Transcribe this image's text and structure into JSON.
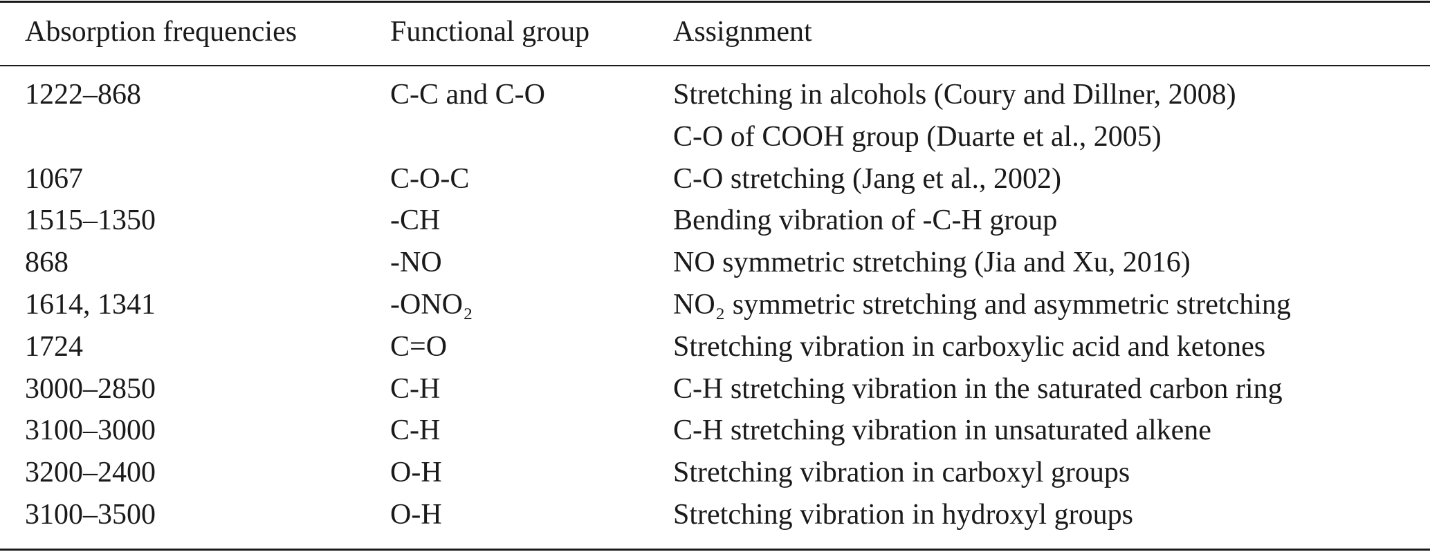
{
  "table": {
    "header": [
      "Absorption frequencies",
      "Functional group",
      "Assignment"
    ],
    "rows": [
      {
        "frequency": "1222–868",
        "group": "C-C and C-O",
        "assignment": [
          "Stretching in alcohols (Coury and Dillner, 2008)",
          "C-O of COOH group (Duarte et al., 2005)"
        ]
      },
      {
        "frequency": "1067",
        "group": "C-O-C",
        "assignment": [
          "C-O stretching (Jang et al., 2002)"
        ]
      },
      {
        "frequency": "1515–1350",
        "group": "-CH",
        "assignment": [
          "Bending vibration of -C-H group"
        ]
      },
      {
        "frequency": "868",
        "group": "-NO",
        "assignment": [
          "NO symmetric stretching (Jia and Xu, 2016)"
        ]
      },
      {
        "frequency": "1614, 1341",
        "group": "-ONO₂",
        "assignment": [
          "NO₂ symmetric stretching and asymmetric stretching"
        ]
      },
      {
        "frequency": "1724",
        "group": "C=O",
        "assignment": [
          "Stretching vibration in carboxylic acid and ketones"
        ]
      },
      {
        "frequency": "3000–2850",
        "group": "C-H",
        "assignment": [
          "C-H stretching vibration in the saturated carbon ring"
        ]
      },
      {
        "frequency": "3100–3000",
        "group": "C-H",
        "assignment": [
          "C-H stretching vibration in unsaturated alkene"
        ]
      },
      {
        "frequency": "3200–2400",
        "group": "O-H",
        "assignment": [
          "Stretching vibration in carboxyl groups"
        ]
      },
      {
        "frequency": "3100–3500",
        "group": "O-H",
        "assignment": [
          "Stretching vibration in hydroxyl groups"
        ]
      }
    ]
  }
}
